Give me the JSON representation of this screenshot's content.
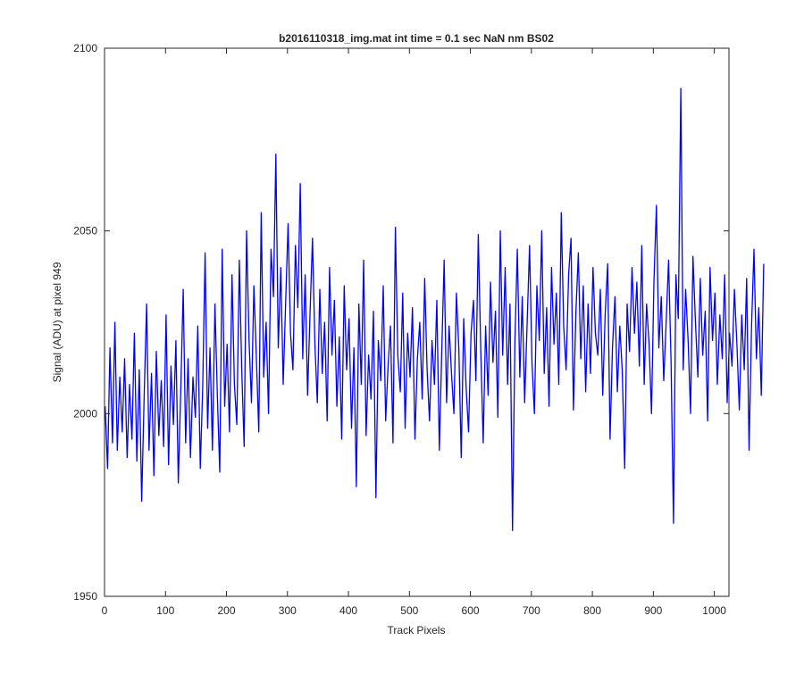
{
  "chart_data": {
    "type": "line",
    "title": "b2016110318_img.mat int time = 0.1 sec  NaN nm BS02",
    "xlabel": "Track Pixels",
    "ylabel": "Signal (ADU) at pixel 949",
    "xlim": [
      0,
      1024
    ],
    "ylim": [
      1950,
      2100
    ],
    "xticks": [
      0,
      100,
      200,
      300,
      400,
      500,
      600,
      700,
      800,
      900,
      1000
    ],
    "yticks": [
      1950,
      2000,
      2050,
      2100
    ],
    "grid": false,
    "legend": "none",
    "series": [
      {
        "color": "#0000ff",
        "x_start": 1,
        "x_step": 4,
        "values": [
          2002,
          1985,
          2018,
          1992,
          2025,
          1990,
          2010,
          1995,
          2015,
          1988,
          2008,
          1993,
          2022,
          1987,
          2012,
          1976,
          2005,
          2030,
          1990,
          2011,
          1983,
          2017,
          1994,
          2009,
          1991,
          2027,
          1986,
          2013,
          1997,
          2020,
          1981,
          2006,
          2034,
          1992,
          2015,
          1988,
          2010,
          1999,
          2024,
          1985,
          2007,
          2044,
          1996,
          2018,
          1990,
          2030,
          2005,
          1984,
          2045,
          2002,
          2019,
          1995,
          2038,
          2008,
          1997,
          2042,
          2012,
          1991,
          2050,
          2020,
          2003,
          2035,
          2015,
          1995,
          2055,
          2010,
          2025,
          2000,
          2045,
          2032,
          2071,
          2018,
          2040,
          2008,
          2030,
          2052,
          2022,
          2012,
          2046,
          2029,
          2063,
          2015,
          2038,
          2005,
          2027,
          2048,
          2019,
          2003,
          2034,
          2011,
          2025,
          1998,
          2040,
          2016,
          2031,
          2002,
          2021,
          1993,
          2035,
          2012,
          2026,
          1996,
          2018,
          1980,
          2030,
          2008,
          2042,
          1994,
          2016,
          2004,
          2028,
          1977,
          2020,
          2009,
          2035,
          1998,
          2013,
          2024,
          1992,
          2051,
          2016,
          2006,
          2033,
          1996,
          2022,
          2010,
          2029,
          1993,
          2015,
          2025,
          2004,
          2037,
          2012,
          1998,
          2020,
          2008,
          2031,
          1990,
          2017,
          2042,
          2003,
          2024,
          2011,
          2000,
          2033,
          2018,
          1988,
          2026,
          2007,
          1995,
          2022,
          2031,
          2009,
          2049,
          2017,
          1992,
          2024,
          2005,
          2036,
          2014,
          2028,
          1999,
          2050,
          2016,
          2040,
          2008,
          2030,
          1968,
          2020,
          2045,
          2010,
          2032,
          2003,
          2025,
          2046,
          2014,
          2000,
          2035,
          2020,
          2050,
          2011,
          2029,
          2002,
          2040,
          2019,
          2033,
          2008,
          2055,
          2024,
          2012,
          2038,
          2048,
          2001,
          2028,
          2044,
          2015,
          2035,
          2006,
          2030,
          2011,
          2040,
          2022,
          2016,
          2034,
          2005,
          2027,
          2041,
          1993,
          2018,
          2032,
          2006,
          2024,
          2012,
          1985,
          2030,
          2017,
          2040,
          2022,
          2036,
          2013,
          2046,
          2008,
          2030,
          2019,
          2000,
          2036,
          2057,
          2018,
          2032,
          2009,
          2025,
          2042,
          2014,
          1970,
          2038,
          2026,
          2089,
          2012,
          2034,
          2020,
          2000,
          2043,
          2025,
          2010,
          2037,
          2016,
          2028,
          1998,
          2040,
          2020,
          2033,
          2008,
          2027,
          2015,
          2038,
          2003,
          2022,
          2013,
          2034,
          2019,
          2001,
          2027,
          2012,
          2037,
          1990,
          2024,
          2045,
          2015,
          2029,
          2005,
          2041
        ]
      }
    ]
  }
}
